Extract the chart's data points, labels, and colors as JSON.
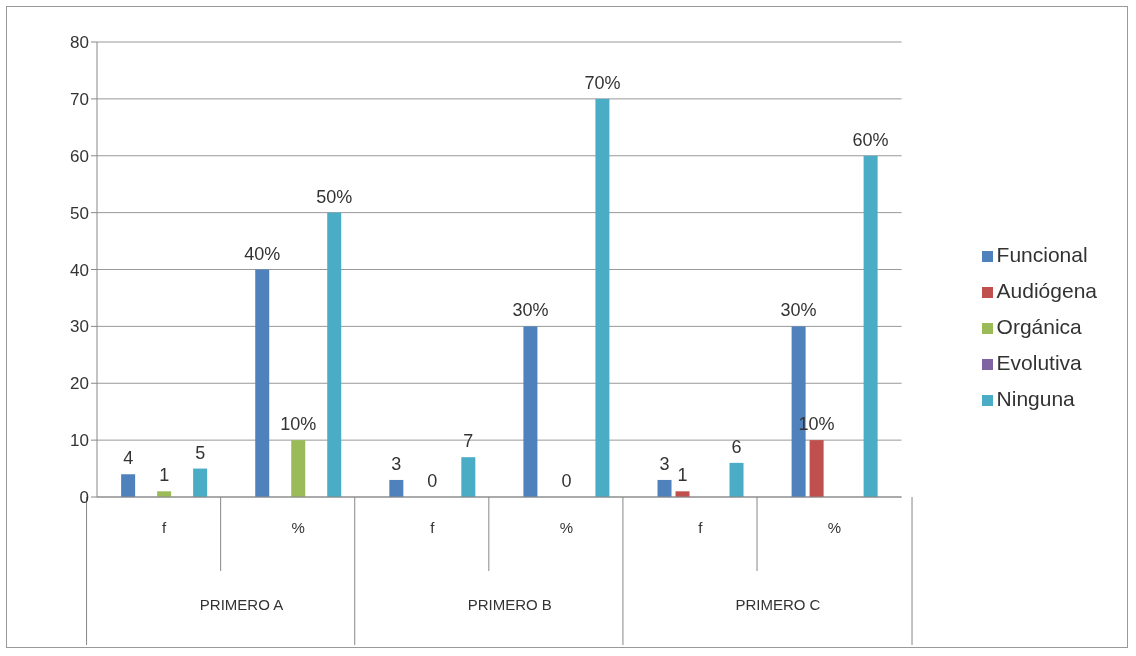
{
  "chart_data": {
    "type": "bar",
    "categories": [
      "f",
      "%",
      "f",
      "%",
      "f",
      "%"
    ],
    "series": [
      {
        "name": "Funcional",
        "color": "#4f81bd",
        "values": [
          4,
          40,
          3,
          30,
          3,
          30
        ],
        "value_labels": [
          "4",
          "40%",
          "3",
          "30%",
          "3",
          "30%"
        ]
      },
      {
        "name": "Audiógena",
        "color": "#c0504d",
        "values": [
          0,
          0,
          0,
          0,
          1,
          10
        ],
        "value_labels": [
          null,
          null,
          null,
          null,
          "1",
          "10%"
        ]
      },
      {
        "name": "Orgánica",
        "color": "#9bbb59",
        "values": [
          1,
          10,
          0,
          0,
          0,
          0
        ],
        "value_labels": [
          "1",
          "10%",
          "0",
          "0",
          null,
          null
        ]
      },
      {
        "name": "Evolutiva",
        "color": "#8064a2",
        "values": [
          0,
          0,
          0,
          0,
          0,
          0
        ],
        "value_labels": [
          null,
          null,
          null,
          null,
          null,
          null
        ]
      },
      {
        "name": "Ninguna",
        "color": "#4bacc6",
        "values": [
          5,
          50,
          7,
          70,
          6,
          60
        ],
        "value_labels": [
          "5",
          "50%",
          "7",
          "70%",
          "6",
          "60%"
        ]
      }
    ],
    "annotations": [
      "PRIMERO A",
      "PRIMERO B",
      "PRIMERO C"
    ],
    "ylim": [
      0,
      80
    ],
    "yticks": [
      0,
      10,
      20,
      30,
      40,
      50,
      60,
      70,
      80
    ],
    "grid": "y",
    "legend": "right"
  }
}
